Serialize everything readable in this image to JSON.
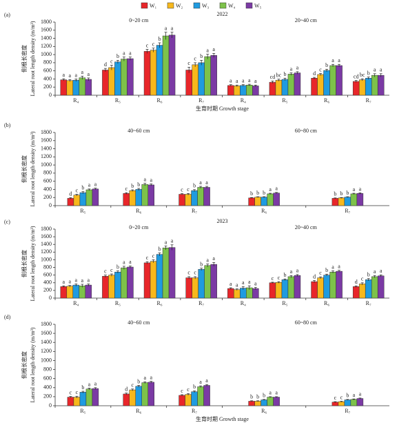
{
  "legend": [
    {
      "name": "W₁",
      "color": "#e8262a"
    },
    {
      "name": "W₂",
      "color": "#f7b81c"
    },
    {
      "name": "W₃",
      "color": "#1f9be0"
    },
    {
      "name": "W₄",
      "color": "#7dc24a"
    },
    {
      "name": "W₅",
      "color": "#7b3aa4"
    }
  ],
  "chart_data": [
    {
      "type": "bar",
      "label": "(a)",
      "title": "2022",
      "ylabel": [
        "侧根长密度",
        "Lateral root length density (m/m³)"
      ],
      "xlabel": "生育时期 Growth stage",
      "ylim": [
        0,
        1800
      ],
      "yticks": [
        0,
        200,
        400,
        600,
        800,
        1000,
        1200,
        1400,
        1600,
        1800
      ],
      "groups": [
        {
          "title": "0~20 cm",
          "categories": [
            "R₄",
            "R₅",
            "R₆",
            "R₇"
          ],
          "series": [
            {
              "values": [
                380,
                620,
                1080,
                620
              ],
              "errors": [
                25,
                40,
                50,
                70
              ],
              "letters": [
                "a",
                "d",
                "c",
                "c"
              ]
            },
            {
              "values": [
                360,
                680,
                1110,
                750
              ],
              "errors": [
                25,
                60,
                50,
                50
              ],
              "letters": [
                "a",
                "c",
                "c",
                "c"
              ]
            },
            {
              "values": [
                370,
                820,
                1230,
                800
              ],
              "errors": [
                30,
                40,
                60,
                60
              ],
              "letters": [
                "a",
                "b",
                "b",
                "b"
              ]
            },
            {
              "values": [
                430,
                890,
                1460,
                950
              ],
              "errors": [
                40,
                50,
                90,
                60
              ],
              "letters": [
                "a",
                "a",
                "a",
                "a"
              ]
            },
            {
              "values": [
                390,
                900,
                1480,
                980
              ],
              "errors": [
                35,
                40,
                70,
                50
              ],
              "letters": [
                "a",
                "a",
                "a",
                "a"
              ]
            }
          ]
        },
        {
          "title": "20~40 cm",
          "categories": [
            "R₄",
            "R₅",
            "R₆",
            "R₇"
          ],
          "series": [
            {
              "values": [
                240,
                320,
                420,
                340
              ],
              "errors": [
                20,
                30,
                20,
                25
              ],
              "letters": [
                "a",
                "cd",
                "d",
                "cd"
              ]
            },
            {
              "values": [
                230,
                370,
                510,
                380
              ],
              "errors": [
                20,
                25,
                25,
                25
              ],
              "letters": [
                "a",
                "bc",
                "c",
                "bc"
              ]
            },
            {
              "values": [
                240,
                390,
                610,
                420
              ],
              "errors": [
                20,
                30,
                30,
                30
              ],
              "letters": [
                "a",
                "b",
                "b",
                "b"
              ]
            },
            {
              "values": [
                250,
                520,
                730,
                490
              ],
              "errors": [
                20,
                30,
                30,
                40
              ],
              "letters": [
                "a",
                "a",
                "a",
                "a"
              ]
            },
            {
              "values": [
                230,
                550,
                730,
                490
              ],
              "errors": [
                20,
                30,
                30,
                40
              ],
              "letters": [
                "a",
                "a",
                "a",
                "a"
              ]
            }
          ]
        }
      ]
    },
    {
      "type": "bar",
      "label": "(b)",
      "ylabel": [
        "侧根长密度",
        "Lateral root length density (m/m³)"
      ],
      "ylim": [
        0,
        1800
      ],
      "yticks": [
        0,
        200,
        400,
        600,
        800,
        1000,
        1200,
        1400,
        1600,
        1800
      ],
      "groups": [
        {
          "title": "40~60 cm",
          "categories": [
            "R₅",
            "R₆",
            "R₇"
          ],
          "series": [
            {
              "values": [
                180,
                300,
                280
              ],
              "errors": [
                15,
                20,
                15
              ],
              "letters": [
                "d",
                "c",
                "c"
              ]
            },
            {
              "values": [
                260,
                370,
                280
              ],
              "errors": [
                20,
                20,
                20
              ],
              "letters": [
                "c",
                "b",
                "c"
              ]
            },
            {
              "values": [
                320,
                400,
                370
              ],
              "errors": [
                25,
                25,
                25
              ],
              "letters": [
                "b",
                "b",
                "b"
              ]
            },
            {
              "values": [
                390,
                520,
                450
              ],
              "errors": [
                20,
                30,
                25
              ],
              "letters": [
                "a",
                "a",
                "a"
              ]
            },
            {
              "values": [
                410,
                510,
                450
              ],
              "errors": [
                20,
                25,
                25
              ],
              "letters": [
                "a",
                "a",
                "a"
              ]
            }
          ]
        },
        {
          "title": "60~80 cm",
          "categories": [
            "R₆",
            "R₇"
          ],
          "series": [
            {
              "values": [
                190,
                180
              ],
              "errors": [
                10,
                10
              ],
              "letters": [
                "b",
                "b"
              ]
            },
            {
              "values": [
                210,
                190
              ],
              "errors": [
                10,
                10
              ],
              "letters": [
                "b",
                "b"
              ]
            },
            {
              "values": [
                210,
                210
              ],
              "errors": [
                10,
                10
              ],
              "letters": [
                "b",
                "b"
              ]
            },
            {
              "values": [
                290,
                290
              ],
              "errors": [
                15,
                15
              ],
              "letters": [
                "a",
                "a"
              ]
            },
            {
              "values": [
                310,
                300
              ],
              "errors": [
                15,
                15
              ],
              "letters": [
                "a",
                "a"
              ]
            }
          ]
        }
      ]
    },
    {
      "type": "bar",
      "label": "(c)",
      "title": "2023",
      "ylabel": [
        "侧根长密度",
        "Lateral root length density (m/m³)"
      ],
      "ylim": [
        0,
        1800
      ],
      "yticks": [
        0,
        200,
        400,
        600,
        800,
        1000,
        1200,
        1400,
        1600,
        1800
      ],
      "groups": [
        {
          "title": "0~20 cm",
          "categories": [
            "R₄",
            "R₅",
            "R₆",
            "R₇"
          ],
          "series": [
            {
              "values": [
                300,
                570,
                920,
                530
              ],
              "errors": [
                20,
                30,
                30,
                30
              ],
              "letters": [
                "a",
                "c",
                "c",
                "c"
              ]
            },
            {
              "values": [
                310,
                600,
                960,
                530
              ],
              "errors": [
                20,
                30,
                40,
                30
              ],
              "letters": [
                "a",
                "c",
                "c",
                "c"
              ]
            },
            {
              "values": [
                340,
                680,
                1140,
                750
              ],
              "errors": [
                30,
                30,
                40,
                30
              ],
              "letters": [
                "a",
                "b",
                "b",
                "b"
              ]
            },
            {
              "values": [
                320,
                790,
                1310,
                850
              ],
              "errors": [
                40,
                40,
                50,
                40
              ],
              "letters": [
                "a",
                "a",
                "a",
                "a"
              ]
            },
            {
              "values": [
                340,
                810,
                1320,
                880
              ],
              "errors": [
                30,
                30,
                70,
                50
              ],
              "letters": [
                "a",
                "a",
                "a",
                "a"
              ]
            }
          ]
        },
        {
          "title": "20~40 cm",
          "categories": [
            "R₄",
            "R₅",
            "R₆",
            "R₇"
          ],
          "series": [
            {
              "values": [
                250,
                400,
                430,
                300
              ],
              "errors": [
                20,
                15,
                30,
                20
              ],
              "letters": [
                "a",
                "c",
                "d",
                "d"
              ]
            },
            {
              "values": [
                220,
                410,
                530,
                370
              ],
              "errors": [
                20,
                20,
                25,
                30
              ],
              "letters": [
                "a",
                "c",
                "c",
                "c"
              ]
            },
            {
              "values": [
                260,
                480,
                600,
                480
              ],
              "errors": [
                40,
                20,
                25,
                30
              ],
              "letters": [
                "a",
                "b",
                "b",
                "b"
              ]
            },
            {
              "values": [
                270,
                560,
                680,
                560
              ],
              "errors": [
                50,
                30,
                30,
                30
              ],
              "letters": [
                "a",
                "a",
                "a",
                "a"
              ]
            },
            {
              "values": [
                250,
                590,
                700,
                580
              ],
              "errors": [
                30,
                25,
                25,
                25
              ],
              "letters": [
                "a",
                "a",
                "a",
                "a"
              ]
            }
          ]
        }
      ]
    },
    {
      "type": "bar",
      "label": "(d)",
      "ylabel": [
        "侧根长密度",
        "Lateral root length density (m/m³)"
      ],
      "xlabel": "生育时期 Growth stage",
      "ylim": [
        0,
        1800
      ],
      "yticks": [
        0,
        200,
        400,
        600,
        800,
        1000,
        1200,
        1400,
        1600,
        1800
      ],
      "groups": [
        {
          "title": "40~60 cm",
          "categories": [
            "R₅",
            "R₆",
            "R₇"
          ],
          "series": [
            {
              "values": [
                190,
                260,
                230
              ],
              "errors": [
                15,
                20,
                15
              ],
              "letters": [
                "c",
                "d",
                "c"
              ]
            },
            {
              "values": [
                190,
                350,
                250
              ],
              "errors": [
                20,
                20,
                20
              ],
              "letters": [
                "c",
                "c",
                "c"
              ]
            },
            {
              "values": [
                300,
                430,
                310
              ],
              "errors": [
                20,
                20,
                20
              ],
              "letters": [
                "b",
                "b",
                "b"
              ]
            },
            {
              "values": [
                370,
                510,
                420
              ],
              "errors": [
                20,
                20,
                20
              ],
              "letters": [
                "a",
                "a",
                "a"
              ]
            },
            {
              "values": [
                380,
                520,
                450
              ],
              "errors": [
                20,
                20,
                20
              ],
              "letters": [
                "a",
                "a",
                "a"
              ]
            }
          ]
        },
        {
          "title": "60~80 cm",
          "categories": [
            "R₆",
            "R₇"
          ],
          "series": [
            {
              "values": [
                100,
                80
              ],
              "errors": [
                10,
                10
              ],
              "letters": [
                "b",
                "c"
              ]
            },
            {
              "values": [
                100,
                90
              ],
              "errors": [
                10,
                10
              ],
              "letters": [
                "b",
                "c"
              ]
            },
            {
              "values": [
                130,
                130
              ],
              "errors": [
                10,
                10
              ],
              "letters": [
                "b",
                "b"
              ]
            },
            {
              "values": [
                190,
                140
              ],
              "errors": [
                10,
                10
              ],
              "letters": [
                "a",
                "a"
              ]
            },
            {
              "values": [
                190,
                160
              ],
              "errors": [
                10,
                10
              ],
              "letters": [
                "a",
                "a"
              ]
            }
          ]
        }
      ]
    }
  ]
}
